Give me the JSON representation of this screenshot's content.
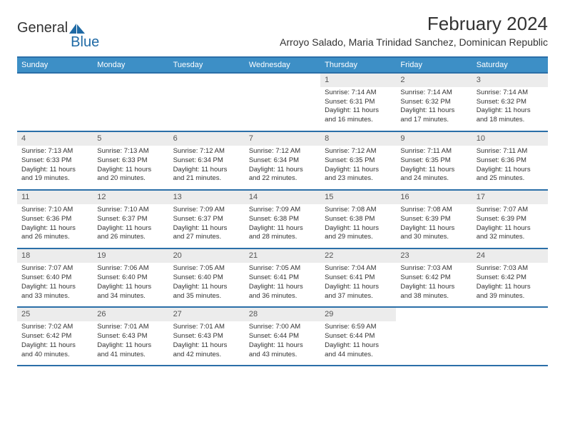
{
  "brand": {
    "text1": "General",
    "text2": "Blue"
  },
  "title": "February 2024",
  "location": "Arroyo Salado, Maria Trinidad Sanchez, Dominican Republic",
  "colors": {
    "header_bar": "#3d8fc6",
    "rule": "#2b6fa8",
    "date_bg": "#ececec",
    "brand_blue": "#1f6aa5",
    "text": "#333333"
  },
  "dow": [
    "Sunday",
    "Monday",
    "Tuesday",
    "Wednesday",
    "Thursday",
    "Friday",
    "Saturday"
  ],
  "weeks": [
    [
      null,
      null,
      null,
      null,
      {
        "d": "1",
        "sr": "7:14 AM",
        "ss": "6:31 PM",
        "dl": "11 hours and 16 minutes."
      },
      {
        "d": "2",
        "sr": "7:14 AM",
        "ss": "6:32 PM",
        "dl": "11 hours and 17 minutes."
      },
      {
        "d": "3",
        "sr": "7:14 AM",
        "ss": "6:32 PM",
        "dl": "11 hours and 18 minutes."
      }
    ],
    [
      {
        "d": "4",
        "sr": "7:13 AM",
        "ss": "6:33 PM",
        "dl": "11 hours and 19 minutes."
      },
      {
        "d": "5",
        "sr": "7:13 AM",
        "ss": "6:33 PM",
        "dl": "11 hours and 20 minutes."
      },
      {
        "d": "6",
        "sr": "7:12 AM",
        "ss": "6:34 PM",
        "dl": "11 hours and 21 minutes."
      },
      {
        "d": "7",
        "sr": "7:12 AM",
        "ss": "6:34 PM",
        "dl": "11 hours and 22 minutes."
      },
      {
        "d": "8",
        "sr": "7:12 AM",
        "ss": "6:35 PM",
        "dl": "11 hours and 23 minutes."
      },
      {
        "d": "9",
        "sr": "7:11 AM",
        "ss": "6:35 PM",
        "dl": "11 hours and 24 minutes."
      },
      {
        "d": "10",
        "sr": "7:11 AM",
        "ss": "6:36 PM",
        "dl": "11 hours and 25 minutes."
      }
    ],
    [
      {
        "d": "11",
        "sr": "7:10 AM",
        "ss": "6:36 PM",
        "dl": "11 hours and 26 minutes."
      },
      {
        "d": "12",
        "sr": "7:10 AM",
        "ss": "6:37 PM",
        "dl": "11 hours and 26 minutes."
      },
      {
        "d": "13",
        "sr": "7:09 AM",
        "ss": "6:37 PM",
        "dl": "11 hours and 27 minutes."
      },
      {
        "d": "14",
        "sr": "7:09 AM",
        "ss": "6:38 PM",
        "dl": "11 hours and 28 minutes."
      },
      {
        "d": "15",
        "sr": "7:08 AM",
        "ss": "6:38 PM",
        "dl": "11 hours and 29 minutes."
      },
      {
        "d": "16",
        "sr": "7:08 AM",
        "ss": "6:39 PM",
        "dl": "11 hours and 30 minutes."
      },
      {
        "d": "17",
        "sr": "7:07 AM",
        "ss": "6:39 PM",
        "dl": "11 hours and 32 minutes."
      }
    ],
    [
      {
        "d": "18",
        "sr": "7:07 AM",
        "ss": "6:40 PM",
        "dl": "11 hours and 33 minutes."
      },
      {
        "d": "19",
        "sr": "7:06 AM",
        "ss": "6:40 PM",
        "dl": "11 hours and 34 minutes."
      },
      {
        "d": "20",
        "sr": "7:05 AM",
        "ss": "6:40 PM",
        "dl": "11 hours and 35 minutes."
      },
      {
        "d": "21",
        "sr": "7:05 AM",
        "ss": "6:41 PM",
        "dl": "11 hours and 36 minutes."
      },
      {
        "d": "22",
        "sr": "7:04 AM",
        "ss": "6:41 PM",
        "dl": "11 hours and 37 minutes."
      },
      {
        "d": "23",
        "sr": "7:03 AM",
        "ss": "6:42 PM",
        "dl": "11 hours and 38 minutes."
      },
      {
        "d": "24",
        "sr": "7:03 AM",
        "ss": "6:42 PM",
        "dl": "11 hours and 39 minutes."
      }
    ],
    [
      {
        "d": "25",
        "sr": "7:02 AM",
        "ss": "6:42 PM",
        "dl": "11 hours and 40 minutes."
      },
      {
        "d": "26",
        "sr": "7:01 AM",
        "ss": "6:43 PM",
        "dl": "11 hours and 41 minutes."
      },
      {
        "d": "27",
        "sr": "7:01 AM",
        "ss": "6:43 PM",
        "dl": "11 hours and 42 minutes."
      },
      {
        "d": "28",
        "sr": "7:00 AM",
        "ss": "6:44 PM",
        "dl": "11 hours and 43 minutes."
      },
      {
        "d": "29",
        "sr": "6:59 AM",
        "ss": "6:44 PM",
        "dl": "11 hours and 44 minutes."
      },
      null,
      null
    ]
  ],
  "labels": {
    "sunrise": "Sunrise: ",
    "sunset": "Sunset: ",
    "daylight": "Daylight: "
  }
}
